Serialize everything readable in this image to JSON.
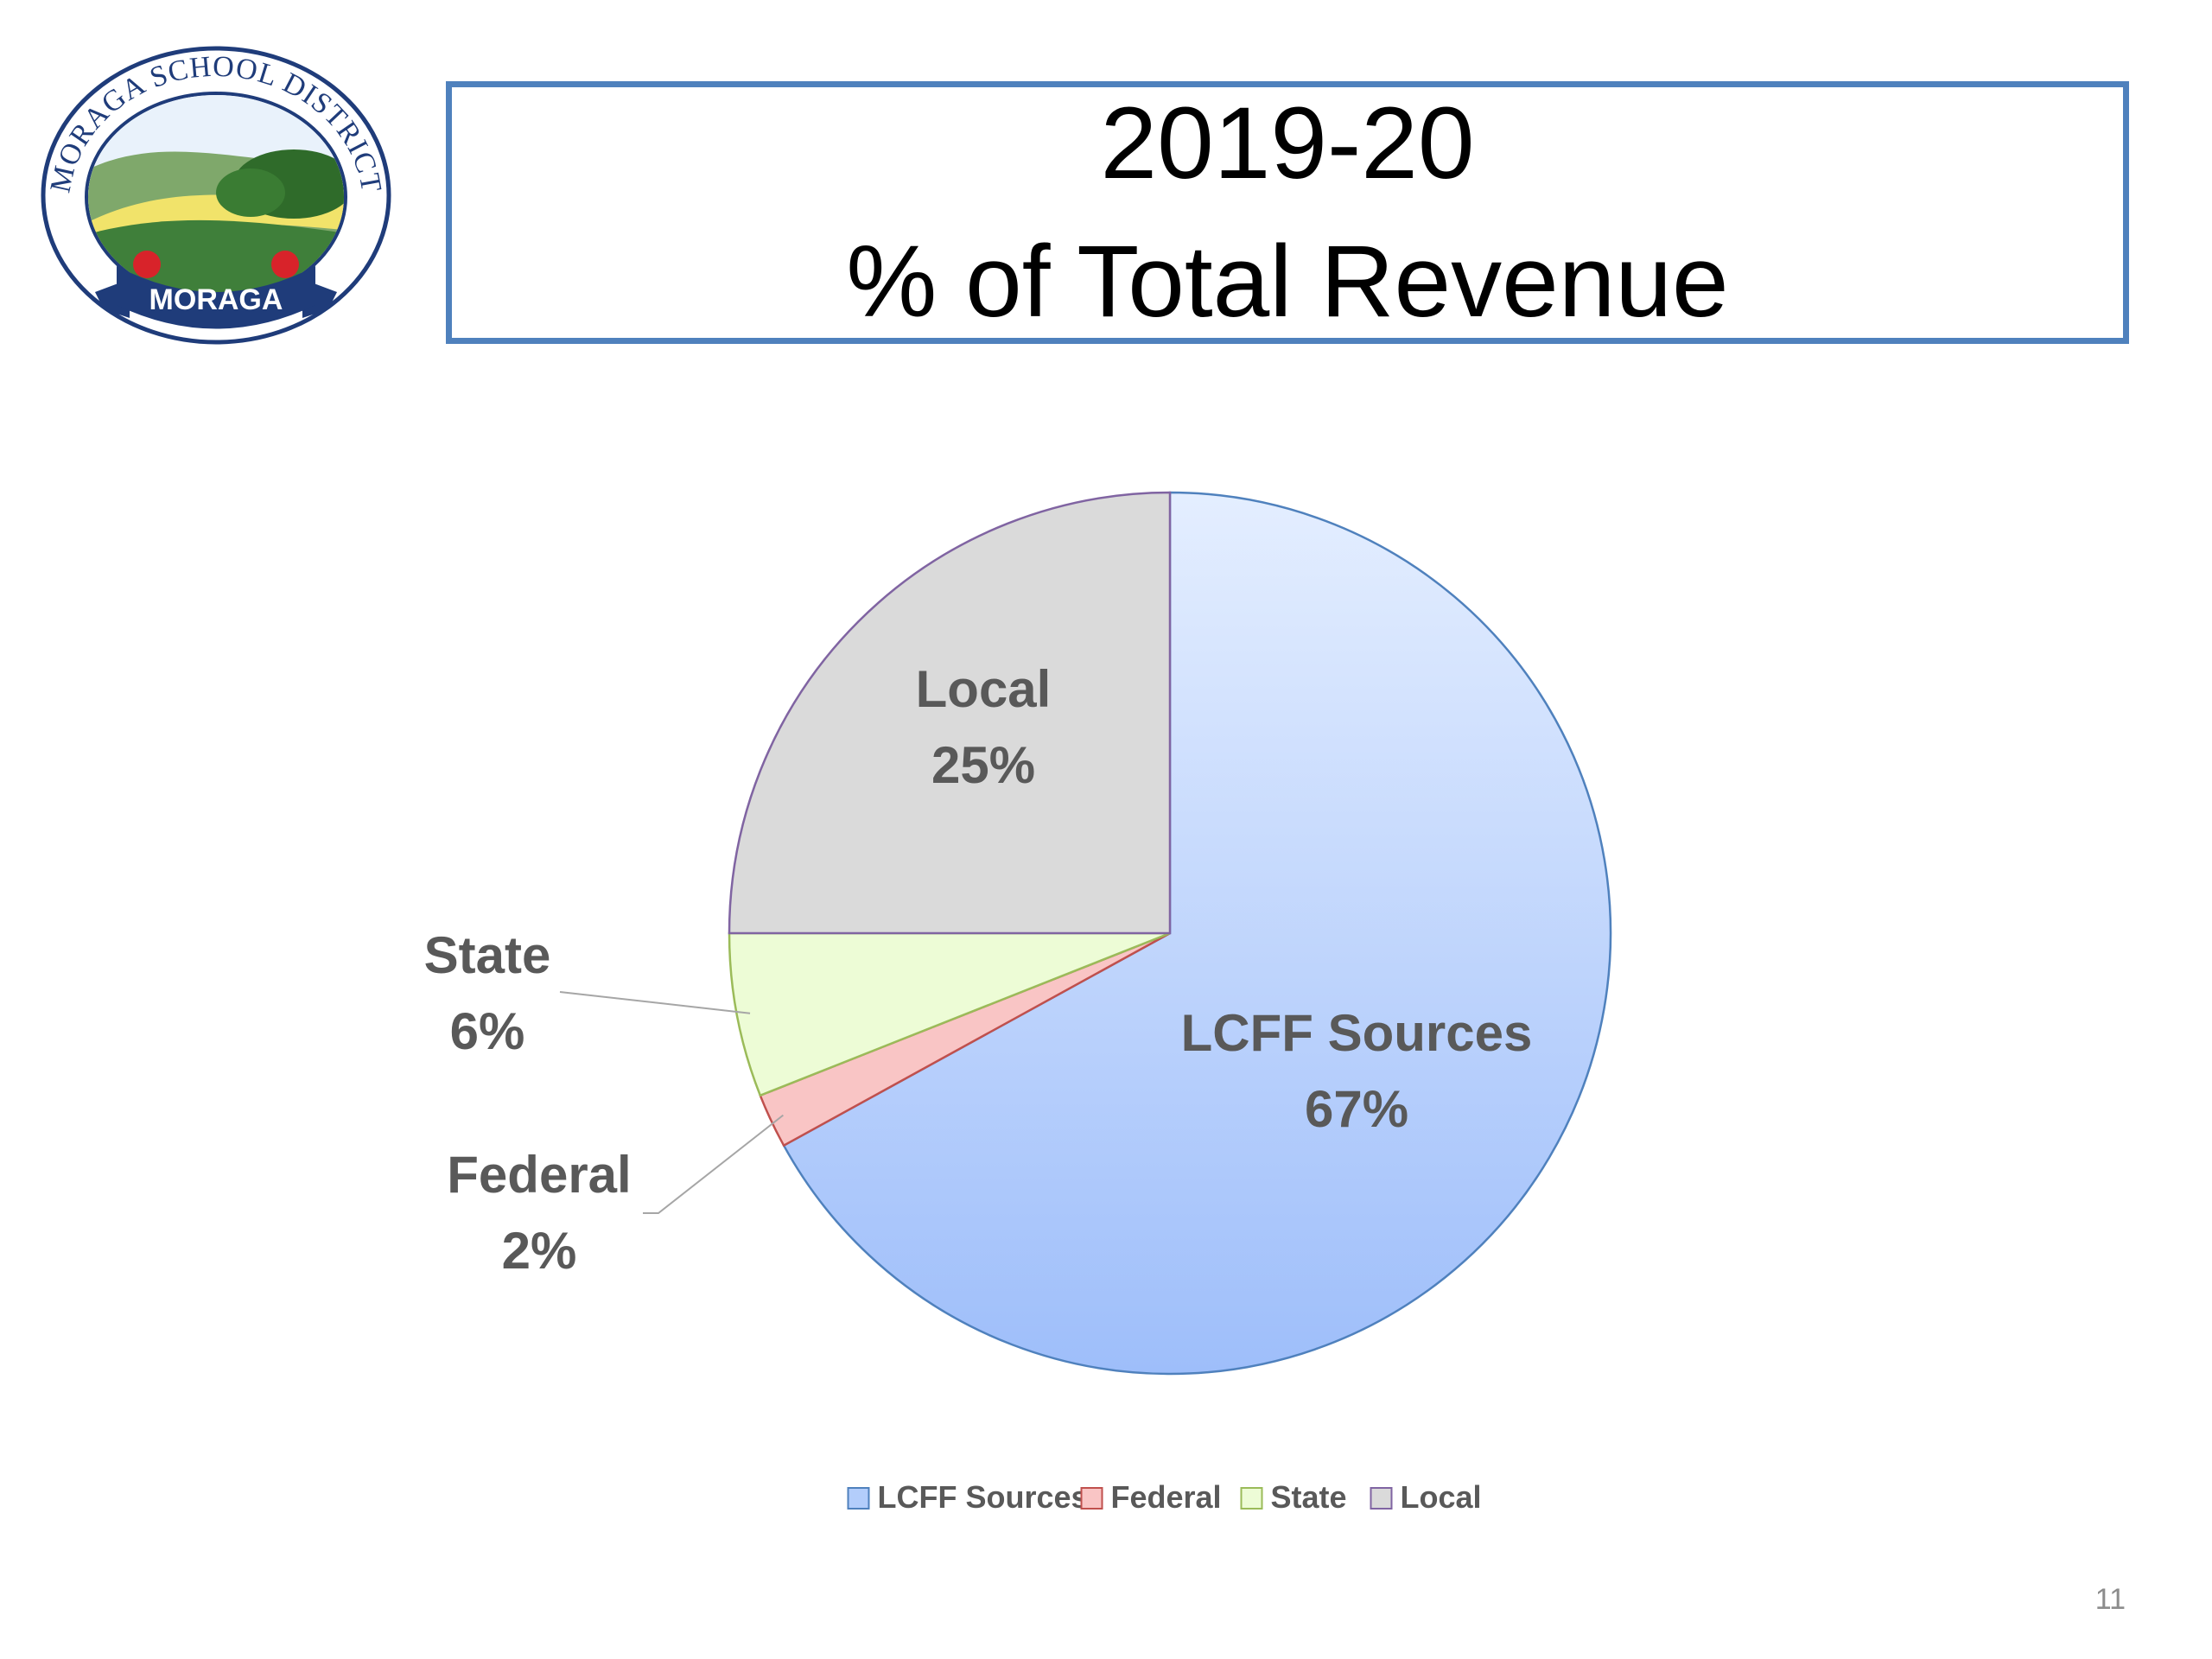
{
  "logo": {
    "name": "moraga-school-district-seal",
    "ring_text": "MORAGA SCHOOL DISTRICT",
    "ribbon_text": "MORAGA"
  },
  "title": {
    "line1": "2019-20",
    "line2": "% of Total Revenue"
  },
  "colors": {
    "title_border": "#4f81bd",
    "label_text": "#595959"
  },
  "chart_data": {
    "type": "pie",
    "title": "",
    "series": [
      {
        "name": "LCFF Sources",
        "value": 67,
        "label": "67%",
        "fill": "#b3cdfb",
        "stroke": "#4f81bd"
      },
      {
        "name": "Federal",
        "value": 2,
        "label": "2%",
        "fill": "#f9c5c5",
        "stroke": "#c0504d"
      },
      {
        "name": "State",
        "value": 6,
        "label": "6%",
        "fill": "#edfcd6",
        "stroke": "#9bbb59"
      },
      {
        "name": "Local",
        "value": 25,
        "label": "25%",
        "fill": "#dadada",
        "stroke": "#8064a2"
      }
    ],
    "legend": {
      "placement": "bottom",
      "entries": [
        "LCFF Sources",
        "Federal",
        "State",
        "Local"
      ]
    },
    "data_labels": "name and percentage"
  },
  "page_number": "11"
}
